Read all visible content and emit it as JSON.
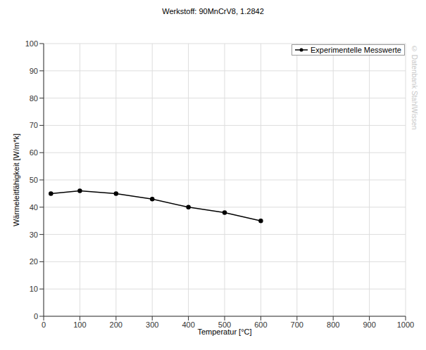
{
  "chart_data": {
    "type": "line",
    "title": "Werkstoff: 90MnCrV8, 1.2842",
    "x_label": "Temperatur [°C]",
    "y_label": "Wärmeleitfähigkeit [W/m*k]",
    "annotations": [
      "© Datenbank StahlWissen"
    ],
    "x": [
      20,
      100,
      200,
      300,
      400,
      500,
      600
    ],
    "series": [
      {
        "name": "Experimentelle Messwerte",
        "color": "#000000",
        "marker": "circle",
        "values": [
          45,
          46,
          45,
          43,
          40,
          38,
          35
        ]
      }
    ],
    "xlim": [
      0,
      1000
    ],
    "xticks": [
      0,
      100,
      200,
      300,
      400,
      500,
      600,
      700,
      800,
      900,
      1000
    ],
    "ylim": [
      0,
      100
    ],
    "yticks": [
      0,
      10,
      20,
      30,
      40,
      50,
      60,
      70,
      80,
      90,
      100
    ],
    "grid": true,
    "legend": "top-right"
  }
}
